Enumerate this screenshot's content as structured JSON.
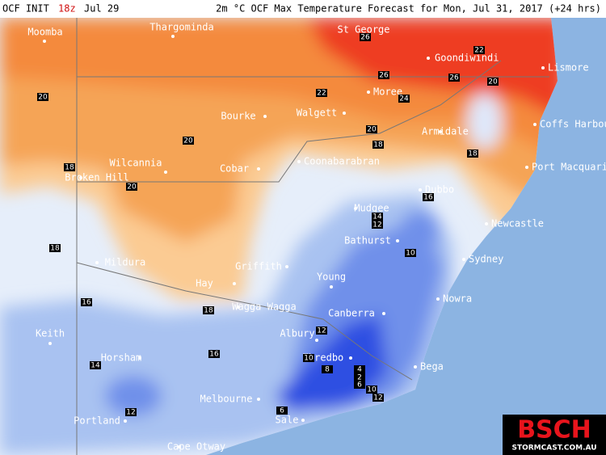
{
  "header": {
    "init_label": "OCF INIT",
    "init_hour": "18z",
    "init_date": "Jul 29",
    "title": "2m °C OCF Max Temperature Forecast for Mon, Jul 31, 2017 (+24 hrs)"
  },
  "places": [
    "Moomba",
    "Thargominda",
    "St George",
    "Goondiwindi",
    "Lismore",
    "Moree",
    "Walgett",
    "Bourke",
    "Armidale",
    "Coffs Harbour",
    "Wilcannia",
    "Cobar",
    "Coonabarabran",
    "Broken Hill",
    "Port Macquarie",
    "Dubbo",
    "Mudgee",
    "Newcastle",
    "Bathurst",
    "Sydney",
    "Mildura",
    "Griffith",
    "Young",
    "Hay",
    "Nowra",
    "Wagga Wagga",
    "Canberra",
    "Albury",
    "Keith",
    "Thredbo",
    "Horsham",
    "Bega",
    "Melbourne",
    "Portland",
    "Sale",
    "Cape Otway"
  ],
  "contour_labels": [
    26,
    22,
    26,
    26,
    20,
    24,
    22,
    20,
    20,
    20,
    18,
    18,
    18,
    20,
    16,
    18,
    14,
    12,
    10,
    16,
    18,
    12,
    16,
    14,
    10,
    8,
    4,
    2,
    6,
    10,
    12,
    12,
    6
  ],
  "logo": {
    "brand": "BSCH",
    "site": "STORMCAST.COM.AU"
  }
}
